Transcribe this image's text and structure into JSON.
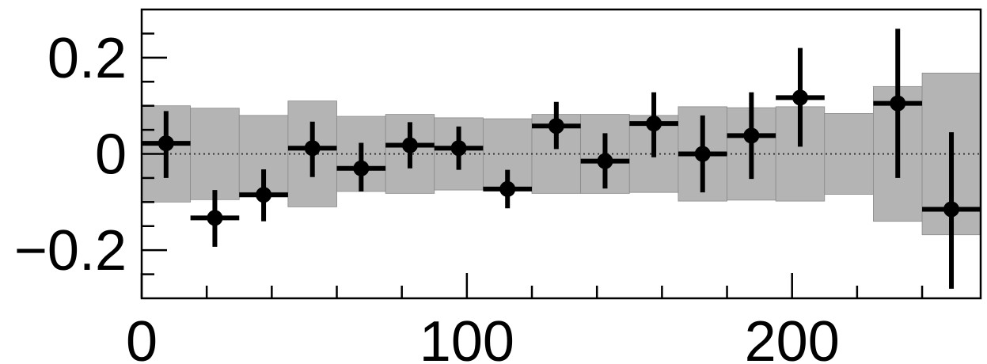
{
  "chart_data": {
    "type": "scatter",
    "title": "",
    "xlabel": "",
    "ylabel": "",
    "xlim": [
      0,
      258
    ],
    "ylim": [
      -0.3,
      0.3
    ],
    "grid": false,
    "legend": "none",
    "reference_line": {
      "y": 0,
      "style": "dotted"
    },
    "x_tick_labels": [
      {
        "value": 0,
        "label": "0"
      },
      {
        "value": 100,
        "label": "100"
      },
      {
        "value": 200,
        "label": "200"
      }
    ],
    "y_tick_labels": [
      {
        "value": 0.2,
        "label": "0.2"
      },
      {
        "value": 0,
        "label": "0"
      },
      {
        "value": -0.2,
        "label": "−0.2"
      }
    ],
    "x_minor_ticks": [
      20,
      40,
      60,
      80,
      120,
      140,
      160,
      180,
      220,
      240
    ],
    "y_minor_ticks": [
      -0.25,
      -0.15,
      -0.1,
      -0.05,
      0.05,
      0.1,
      0.15,
      0.25
    ],
    "band": {
      "color": "#b4b4b4",
      "bins": [
        {
          "x0": 0,
          "x1": 15,
          "half_height": 0.1
        },
        {
          "x0": 15,
          "x1": 30,
          "half_height": 0.095
        },
        {
          "x0": 30,
          "x1": 45,
          "half_height": 0.08
        },
        {
          "x0": 45,
          "x1": 60,
          "half_height": 0.11
        },
        {
          "x0": 60,
          "x1": 75,
          "half_height": 0.078
        },
        {
          "x0": 75,
          "x1": 90,
          "half_height": 0.082
        },
        {
          "x0": 90,
          "x1": 105,
          "half_height": 0.075
        },
        {
          "x0": 105,
          "x1": 120,
          "half_height": 0.073
        },
        {
          "x0": 120,
          "x1": 135,
          "half_height": 0.082
        },
        {
          "x0": 135,
          "x1": 150,
          "half_height": 0.082
        },
        {
          "x0": 150,
          "x1": 165,
          "half_height": 0.08
        },
        {
          "x0": 165,
          "x1": 180,
          "half_height": 0.098
        },
        {
          "x0": 180,
          "x1": 195,
          "half_height": 0.096
        },
        {
          "x0": 195,
          "x1": 210,
          "half_height": 0.098
        },
        {
          "x0": 210,
          "x1": 225,
          "half_height": 0.084
        },
        {
          "x0": 225,
          "x1": 240,
          "half_height": 0.14
        },
        {
          "x0": 240,
          "x1": 258,
          "half_height": 0.168
        }
      ]
    },
    "points": [
      {
        "x": 7.5,
        "y": 0.022,
        "xerr": 7.5,
        "yerr_low": 0.072,
        "yerr_high": 0.067
      },
      {
        "x": 22.5,
        "y": -0.133,
        "xerr": 7.5,
        "yerr_low": 0.06,
        "yerr_high": 0.058
      },
      {
        "x": 37.5,
        "y": -0.085,
        "xerr": 7.5,
        "yerr_low": 0.055,
        "yerr_high": 0.053
      },
      {
        "x": 52.5,
        "y": 0.012,
        "xerr": 7.5,
        "yerr_low": 0.06,
        "yerr_high": 0.055
      },
      {
        "x": 67.5,
        "y": -0.03,
        "xerr": 7.5,
        "yerr_low": 0.048,
        "yerr_high": 0.053
      },
      {
        "x": 82.5,
        "y": 0.018,
        "xerr": 7.5,
        "yerr_low": 0.048,
        "yerr_high": 0.048
      },
      {
        "x": 97.5,
        "y": 0.012,
        "xerr": 7.5,
        "yerr_low": 0.045,
        "yerr_high": 0.045
      },
      {
        "x": 112.5,
        "y": -0.073,
        "xerr": 7.5,
        "yerr_low": 0.04,
        "yerr_high": 0.04
      },
      {
        "x": 127.5,
        "y": 0.058,
        "xerr": 7.5,
        "yerr_low": 0.048,
        "yerr_high": 0.05
      },
      {
        "x": 142.5,
        "y": -0.015,
        "xerr": 7.5,
        "yerr_low": 0.057,
        "yerr_high": 0.058
      },
      {
        "x": 157.5,
        "y": 0.063,
        "xerr": 7.5,
        "yerr_low": 0.07,
        "yerr_high": 0.065
      },
      {
        "x": 172.5,
        "y": 0.0,
        "xerr": 7.5,
        "yerr_low": 0.08,
        "yerr_high": 0.08
      },
      {
        "x": 187.5,
        "y": 0.038,
        "xerr": 7.5,
        "yerr_low": 0.09,
        "yerr_high": 0.09
      },
      {
        "x": 202.5,
        "y": 0.117,
        "xerr": 7.5,
        "yerr_low": 0.102,
        "yerr_high": 0.103
      },
      {
        "x": 232.5,
        "y": 0.105,
        "xerr": 7.5,
        "yerr_low": 0.155,
        "yerr_high": 0.155
      },
      {
        "x": 249,
        "y": -0.115,
        "xerr": 9,
        "yerr_low": 0.165,
        "yerr_high": 0.16
      }
    ]
  }
}
